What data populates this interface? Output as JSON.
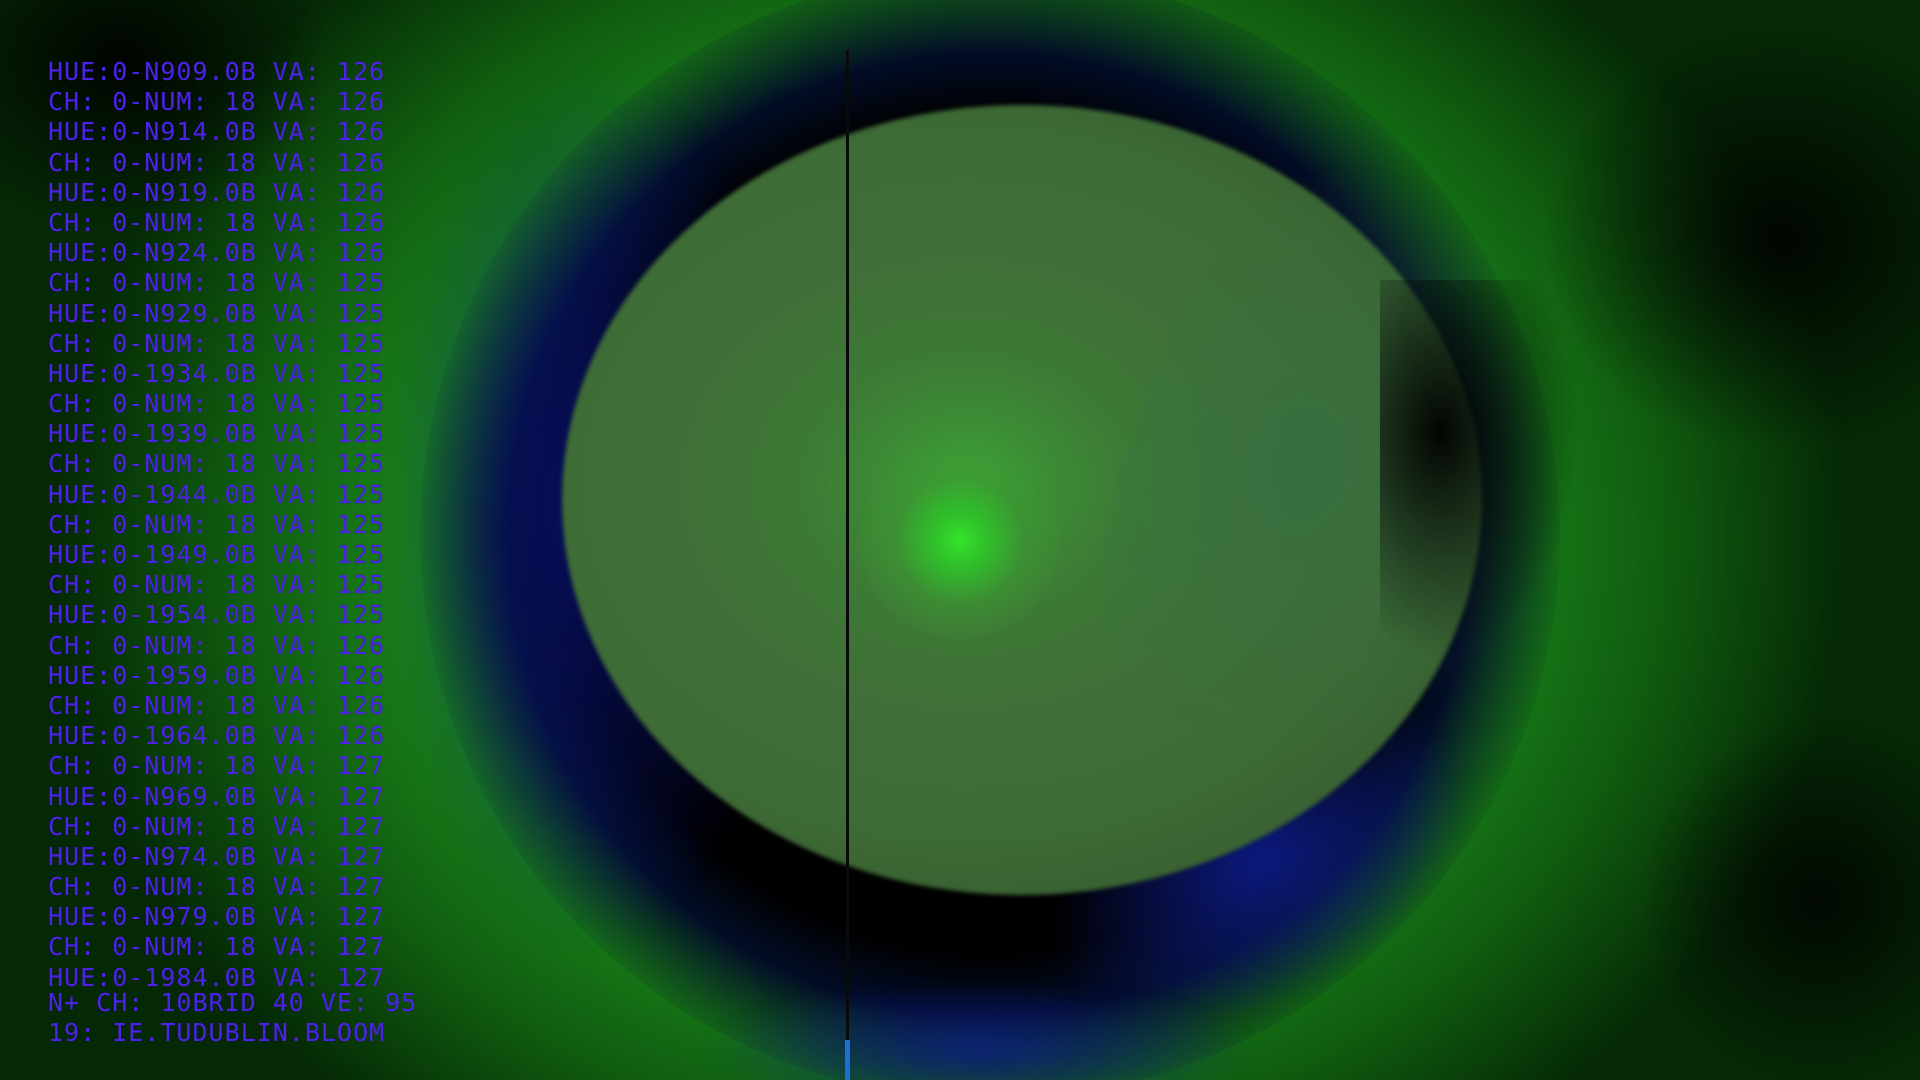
{
  "readout": {
    "lines": [
      "HUE:0-N909.0B VA: 126",
      "CH: 0-NUM: 18 VA: 126",
      "HUE:0-N914.0B VA: 126",
      "CH: 0-NUM: 18 VA: 126",
      "HUE:0-N919.0B VA: 126",
      "CH: 0-NUM: 18 VA: 126",
      "HUE:0-N924.0B VA: 126",
      "CH: 0-NUM: 18 VA: 125",
      "HUE:0-N929.0B VA: 125",
      "CH: 0-NUM: 18 VA: 125",
      "HUE:0-1934.0B VA: 125",
      "CH: 0-NUM: 18 VA: 125",
      "HUE:0-1939.0B VA: 125",
      "CH: 0-NUM: 18 VA: 125",
      "HUE:0-1944.0B VA: 125",
      "CH: 0-NUM: 18 VA: 125",
      "HUE:0-1949.0B VA: 125",
      "CH: 0-NUM: 18 VA: 125",
      "HUE:0-1954.0B VA: 125",
      "CH: 0-NUM: 18 VA: 126",
      "HUE:0-1959.0B VA: 126",
      "CH: 0-NUM: 18 VA: 126",
      "HUE:0-1964.0B VA: 126",
      "CH: 0-NUM: 18 VA: 127",
      "HUE:0-N969.0B VA: 127",
      "CH: 0-NUM: 18 VA: 127",
      "HUE:0-N974.0B VA: 127",
      "CH: 0-NUM: 18 VA: 127",
      "HUE:0-N979.0B VA: 127",
      "CH: 0-NUM: 18 VA: 127",
      "HUE:0-1984.0B VA: 127"
    ],
    "footer_line_1": "N+ CH: 10BRID 40 VE: 95",
    "footer_line_2": "19: IE.TUDUBLIN.BLOOM"
  },
  "colors": {
    "overlay_text": "#4c22e6",
    "cursor_line": "#0a0a0a",
    "cursor_tip": "#1c6fd9",
    "center_glow": "#36e52a"
  }
}
